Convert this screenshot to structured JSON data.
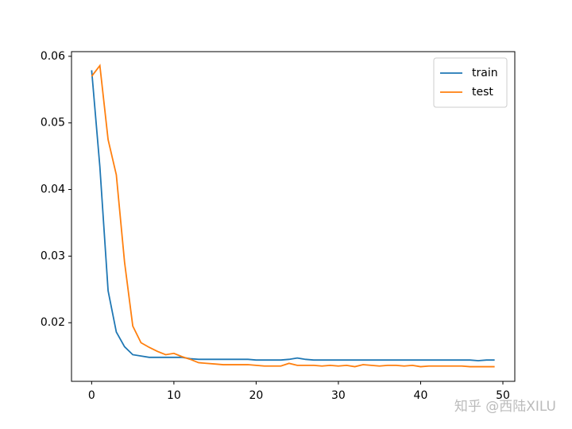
{
  "chart_data": {
    "type": "line",
    "x": [
      0,
      1,
      2,
      3,
      4,
      5,
      6,
      7,
      8,
      9,
      10,
      11,
      12,
      13,
      14,
      15,
      16,
      17,
      18,
      19,
      20,
      21,
      22,
      23,
      24,
      25,
      26,
      27,
      28,
      29,
      30,
      31,
      32,
      33,
      34,
      35,
      36,
      37,
      38,
      39,
      40,
      41,
      42,
      43,
      44,
      45,
      46,
      47,
      48,
      49
    ],
    "series": [
      {
        "name": "train",
        "color": "#1f77b4",
        "values": [
          0.0579,
          0.0434,
          0.0248,
          0.0186,
          0.0164,
          0.0152,
          0.015,
          0.0148,
          0.0148,
          0.0148,
          0.0148,
          0.0148,
          0.0146,
          0.0145,
          0.0145,
          0.0145,
          0.0145,
          0.0145,
          0.0145,
          0.0145,
          0.0144,
          0.0144,
          0.0144,
          0.0144,
          0.0145,
          0.0147,
          0.0145,
          0.0144,
          0.0144,
          0.0144,
          0.0144,
          0.0144,
          0.0144,
          0.0144,
          0.0144,
          0.0144,
          0.0144,
          0.0144,
          0.0144,
          0.0144,
          0.0144,
          0.0144,
          0.0144,
          0.0144,
          0.0144,
          0.0144,
          0.0144,
          0.0143,
          0.0144,
          0.0144
        ]
      },
      {
        "name": "test",
        "color": "#ff7f0e",
        "values": [
          0.057,
          0.0586,
          0.0475,
          0.0422,
          0.0291,
          0.0195,
          0.017,
          0.0163,
          0.0157,
          0.0152,
          0.0154,
          0.0149,
          0.0145,
          0.014,
          0.0139,
          0.0138,
          0.0137,
          0.0137,
          0.0137,
          0.0137,
          0.0136,
          0.0135,
          0.0135,
          0.0135,
          0.0139,
          0.0136,
          0.0136,
          0.0136,
          0.0135,
          0.0136,
          0.0135,
          0.0136,
          0.0134,
          0.0137,
          0.0136,
          0.0135,
          0.0136,
          0.0136,
          0.0135,
          0.0136,
          0.0134,
          0.0135,
          0.0135,
          0.0135,
          0.0135,
          0.0135,
          0.0134,
          0.0134,
          0.0134,
          0.0134
        ]
      }
    ],
    "xlim": [
      -2.45,
      51.45
    ],
    "ylim": [
      0.0112,
      0.0607
    ],
    "xticks": [
      0,
      10,
      20,
      30,
      40,
      50
    ],
    "yticks": [
      0.02,
      0.03,
      0.04,
      0.05,
      0.06
    ],
    "legend": "upper right",
    "watermark": "知乎 @西陆XILU"
  }
}
